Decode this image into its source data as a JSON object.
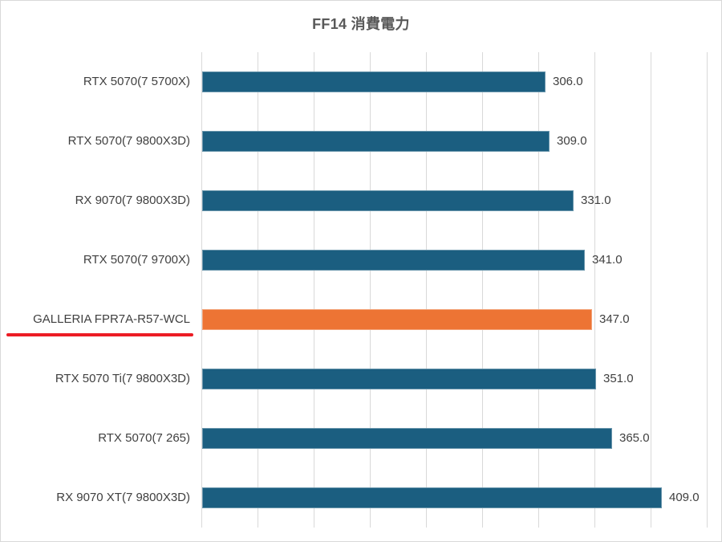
{
  "chart_data": {
    "type": "bar",
    "orientation": "horizontal",
    "title": "FF14 消費電力",
    "xlabel": "",
    "ylabel": "",
    "xlim": [
      0,
      450
    ],
    "grid_step": 50,
    "grid": true,
    "legend": null,
    "categories": [
      "RTX 5070(7 5700X)",
      "RTX 5070(7 9800X3D)",
      "RX 9070(7 9800X3D)",
      "RTX 5070(7 9700X)",
      "GALLERIA FPR7A-R57-WCL",
      "RTX 5070 Ti(7 9800X3D)",
      "RTX 5070(7 265)",
      "RX 9070 XT(7 9800X3D)"
    ],
    "values": [
      306.0,
      309.0,
      331.0,
      341.0,
      347.0,
      351.0,
      365.0,
      409.0
    ],
    "value_labels": [
      "306.0",
      "309.0",
      "331.0",
      "341.0",
      "347.0",
      "351.0",
      "365.0",
      "409.0"
    ],
    "highlight_index": 4,
    "annotations": [
      "red underline under GALLERIA FPR7A-R57-WCL"
    ]
  },
  "colors": {
    "bar": "#1b5e80",
    "highlight_bar": "#ed7434",
    "underline": "#ec1c24",
    "gridline": "#d9d9d9",
    "text": "#404040",
    "title": "#595959"
  }
}
